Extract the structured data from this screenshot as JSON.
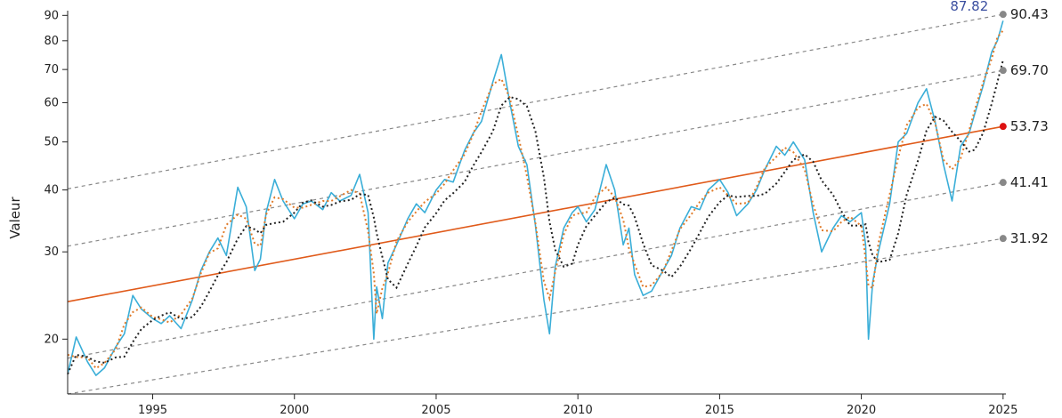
{
  "chart_data": {
    "type": "line",
    "ylabel": "Valeur",
    "yscale": "log",
    "ylim": [
      15.5,
      92
    ],
    "xlim": [
      1992.0,
      2025.1
    ],
    "y_ticks": [
      20,
      30,
      40,
      50,
      60,
      70,
      80,
      90
    ],
    "x_ticks": [
      1995,
      2000,
      2005,
      2010,
      2015,
      2020,
      2025
    ],
    "colors": {
      "price": "#3aaed8",
      "smoothed": "#e07b2a",
      "trend": "#e05a1a",
      "long_average": "#222222",
      "channel": "#888888",
      "current_label": "#3b4fa0"
    },
    "current_value": {
      "label": "87.82",
      "x": 2025.0,
      "y": 87.82
    },
    "channel_lines": [
      {
        "label": "90.43",
        "start": [
          1992.0,
          40.2
        ],
        "end": [
          2025.0,
          90.43
        ],
        "dot_color": "#888888"
      },
      {
        "label": "69.70",
        "start": [
          1992.0,
          30.8
        ],
        "end": [
          2025.0,
          69.7
        ],
        "dot_color": "#888888"
      },
      {
        "label": "53.73",
        "start": [
          1992.0,
          23.8
        ],
        "end": [
          2025.0,
          53.73
        ],
        "dot_color": "#dd1111",
        "is_trend": true
      },
      {
        "label": "41.41",
        "start": [
          1992.0,
          18.3
        ],
        "end": [
          2025.0,
          41.41
        ],
        "dot_color": "#888888"
      },
      {
        "label": "31.92",
        "start": [
          1992.0,
          15.5
        ],
        "end": [
          2025.0,
          31.92
        ],
        "dot_color": "#888888"
      }
    ],
    "price_series": {
      "x": [
        1992.0,
        1992.3,
        1992.7,
        1993.0,
        1993.3,
        1993.7,
        1994.0,
        1994.3,
        1994.6,
        1995.0,
        1995.3,
        1995.6,
        1996.0,
        1996.4,
        1996.7,
        1997.0,
        1997.3,
        1997.6,
        1998.0,
        1998.3,
        1998.6,
        1998.8,
        1999.0,
        1999.3,
        1999.6,
        2000.0,
        2000.3,
        2000.6,
        2001.0,
        2001.3,
        2001.6,
        2002.0,
        2002.3,
        2002.6,
        2002.8,
        2002.9,
        2003.1,
        2003.3,
        2003.6,
        2004.0,
        2004.3,
        2004.6,
        2005.0,
        2005.3,
        2005.6,
        2006.0,
        2006.3,
        2006.6,
        2007.0,
        2007.3,
        2007.6,
        2007.9,
        2008.2,
        2008.5,
        2008.8,
        2009.0,
        2009.2,
        2009.5,
        2009.8,
        2010.0,
        2010.3,
        2010.6,
        2011.0,
        2011.3,
        2011.6,
        2011.8,
        2012.0,
        2012.3,
        2012.6,
        2013.0,
        2013.3,
        2013.6,
        2014.0,
        2014.3,
        2014.6,
        2015.0,
        2015.3,
        2015.6,
        2016.0,
        2016.3,
        2016.6,
        2017.0,
        2017.3,
        2017.6,
        2018.0,
        2018.3,
        2018.6,
        2019.0,
        2019.3,
        2019.6,
        2020.0,
        2020.15,
        2020.25,
        2020.4,
        2020.6,
        2021.0,
        2021.3,
        2021.6,
        2022.0,
        2022.3,
        2022.6,
        2022.9,
        2023.2,
        2023.5,
        2023.8,
        2024.0,
        2024.3,
        2024.6,
        2024.8,
        2025.0
      ],
      "y": [
        17.0,
        20.2,
        18.0,
        16.9,
        17.5,
        19.3,
        20.5,
        24.5,
        23.0,
        22.0,
        21.5,
        22.3,
        21.0,
        24.0,
        27.5,
        30.0,
        32.0,
        29.5,
        40.5,
        37.0,
        27.5,
        29.0,
        36.0,
        42.0,
        38.0,
        35.0,
        37.5,
        38.0,
        36.5,
        39.5,
        38.0,
        39.0,
        43.0,
        36.0,
        20.0,
        25.5,
        22.0,
        28.5,
        31.0,
        35.0,
        37.5,
        36.0,
        40.0,
        42.0,
        41.5,
        48.0,
        52.0,
        55.0,
        66.0,
        75.0,
        60.0,
        49.0,
        45.0,
        34.0,
        24.0,
        20.5,
        28.0,
        33.5,
        36.0,
        37.0,
        34.5,
        36.5,
        45.0,
        40.0,
        31.0,
        33.5,
        27.0,
        24.5,
        25.0,
        27.5,
        29.5,
        33.5,
        37.0,
        36.5,
        40.0,
        42.0,
        39.5,
        35.5,
        37.5,
        40.0,
        44.0,
        49.0,
        47.0,
        50.0,
        46.0,
        36.0,
        30.0,
        33.5,
        35.5,
        34.5,
        36.0,
        31.0,
        20.0,
        26.0,
        30.0,
        37.5,
        50.0,
        52.0,
        60.0,
        64.0,
        55.0,
        45.0,
        38.0,
        49.0,
        52.0,
        57.0,
        65.0,
        76.0,
        80.0,
        87.8
      ]
    }
  }
}
